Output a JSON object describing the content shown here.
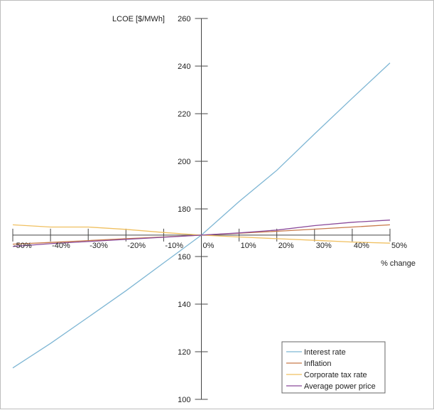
{
  "chart_data": {
    "type": "line",
    "xlabel": "% change",
    "ylabel": "LCOE [$/MWh]",
    "x": [
      -50,
      -40,
      -30,
      -20,
      -10,
      0,
      10,
      20,
      30,
      40,
      50
    ],
    "x_tick_labels": [
      "-50%",
      "-40%",
      "-30%",
      "-20%",
      "-10%",
      "0%",
      "10%",
      "20%",
      "30%",
      "40%",
      "50%"
    ],
    "y_ticks": [
      100,
      120,
      140,
      160,
      180,
      200,
      220,
      240,
      260
    ],
    "ylim": [
      100,
      260
    ],
    "xlim": [
      -50,
      50
    ],
    "x_axis_crosses_y": 169,
    "y_axis_crosses_x": 0,
    "grid": false,
    "legend_position": "bottom-right",
    "series": [
      {
        "name": "Interest rate",
        "color": "#7eb6d4",
        "values": [
          113.2,
          123.5,
          134.5,
          145.6,
          157.3,
          169,
          183.1,
          196.2,
          211.5,
          226.5,
          241.3
        ]
      },
      {
        "name": "Inflation",
        "color": "#c87a4a",
        "values": [
          165.2,
          165.9,
          166.7,
          167.5,
          168.2,
          169,
          169.8,
          170.6,
          171.5,
          172.4,
          173.3
        ]
      },
      {
        "name": "Corporate tax rate",
        "color": "#f0c060",
        "values": [
          173.3,
          172.4,
          172.4,
          171.4,
          170.1,
          169,
          168.2,
          167.5,
          166.8,
          166.1,
          165.6
        ]
      },
      {
        "name": "Average power price",
        "color": "#8a4a9a",
        "values": [
          164.2,
          165.4,
          166.3,
          167.2,
          168.1,
          169,
          169.9,
          171.1,
          173,
          174.4,
          175.3
        ]
      }
    ]
  }
}
